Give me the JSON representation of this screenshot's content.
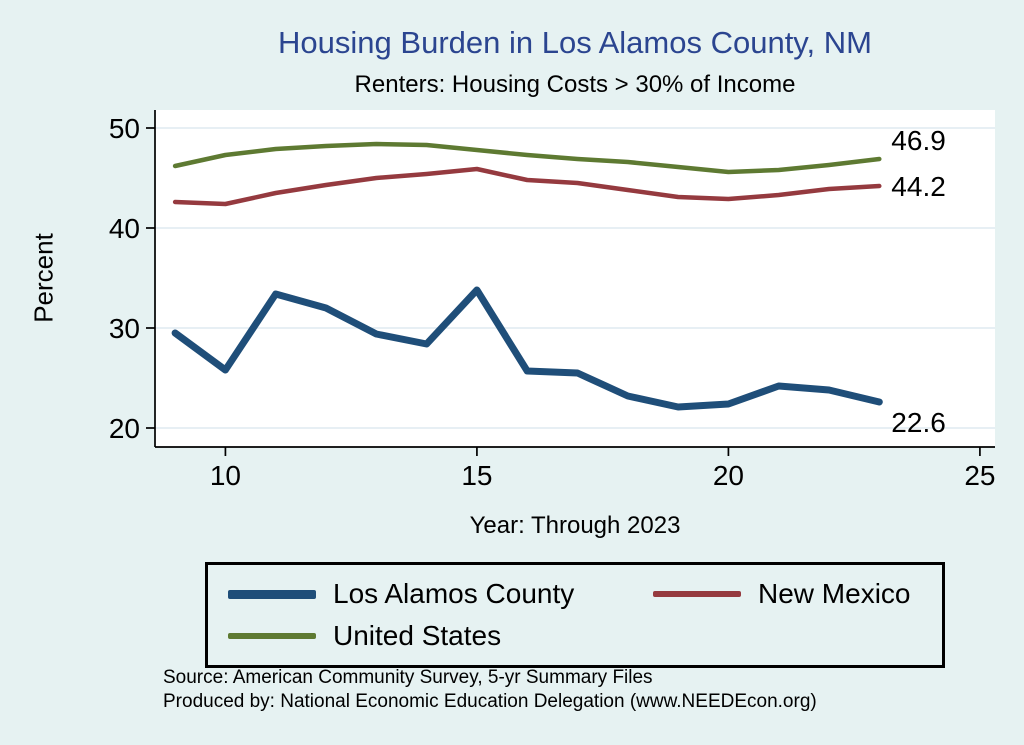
{
  "colors": {
    "page_background": "#e6f2f2",
    "plot_background": "#ffffff",
    "grid": "#dfeaf0",
    "axis": "#000000",
    "title": "#2b4590",
    "text": "#000000"
  },
  "chart_data": {
    "type": "line",
    "title": "Housing Burden in Los Alamos County, NM",
    "subtitle": "Renters: Housing Costs > 30% of Income",
    "xlabel": "Year: Through 2023",
    "ylabel": "Percent",
    "x": [
      9,
      10,
      11,
      12,
      13,
      14,
      15,
      16,
      17,
      18,
      19,
      20,
      21,
      22,
      23
    ],
    "xticks": [
      10,
      15,
      20,
      25
    ],
    "yticks": [
      20,
      30,
      40,
      50
    ],
    "xlim": [
      8.6,
      25.3
    ],
    "ylim": [
      18.1,
      51.8
    ],
    "grid": true,
    "legend_position": "bottom",
    "series": [
      {
        "name": "Los Alamos County",
        "color": "#1f4e79",
        "width": 7,
        "end_label": "22.6",
        "values": [
          29.5,
          25.8,
          33.4,
          32.0,
          29.4,
          28.4,
          33.8,
          25.7,
          25.5,
          23.2,
          22.1,
          22.4,
          24.2,
          23.8,
          22.6
        ]
      },
      {
        "name": "New Mexico",
        "color": "#953a3f",
        "width": 4.5,
        "end_label": "44.2",
        "values": [
          42.6,
          42.4,
          43.5,
          44.3,
          45.0,
          45.4,
          45.9,
          44.8,
          44.5,
          43.8,
          43.1,
          42.9,
          43.3,
          43.9,
          44.2
        ]
      },
      {
        "name": "United States",
        "color": "#5e7a32",
        "width": 4.5,
        "end_label": "46.9",
        "values": [
          46.2,
          47.3,
          47.9,
          48.2,
          48.4,
          48.3,
          47.8,
          47.3,
          46.9,
          46.6,
          46.1,
          45.6,
          45.8,
          46.3,
          46.9
        ]
      }
    ],
    "notes": [
      "Source: American Community Survey, 5-yr Summary Files",
      "Produced by: National Economic Education Delegation (www.NEEDEcon.org)"
    ]
  }
}
